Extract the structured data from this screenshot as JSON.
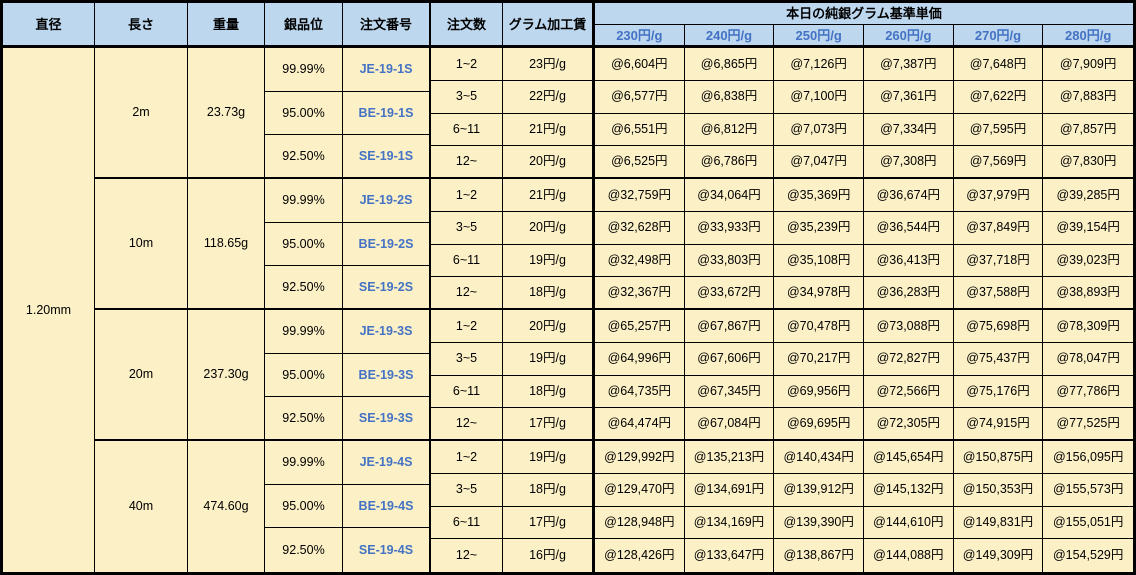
{
  "colors": {
    "header_bg": "#BDD7EE",
    "cell_bg": "#FCF0C6",
    "blue_text": "#4472C4",
    "border": "#000000"
  },
  "table": {
    "headers": {
      "diameter": "直径",
      "length": "長さ",
      "weight": "重量",
      "purity": "銀品位",
      "order_no": "注文番号",
      "qty": "注文数",
      "fee": "グラム加工賃",
      "price_group": "本日の純銀グラム基準単価",
      "price_cols": [
        "230円/g",
        "240円/g",
        "250円/g",
        "260円/g",
        "270円/g",
        "280円/g"
      ]
    },
    "diameter": "1.20mm",
    "groups": [
      {
        "length": "2m",
        "weight": "23.73g",
        "purities": [
          {
            "grade": "99.99%",
            "order_no": "JE-19-1S"
          },
          {
            "grade": "95.00%",
            "order_no": "BE-19-1S"
          },
          {
            "grade": "92.50%",
            "order_no": "SE-19-1S"
          }
        ],
        "rows": [
          {
            "qty": "1~2",
            "fee": "23円/g",
            "prices": [
              "@6,604円",
              "@6,865円",
              "@7,126円",
              "@7,387円",
              "@7,648円",
              "@7,909円"
            ]
          },
          {
            "qty": "3~5",
            "fee": "22円/g",
            "prices": [
              "@6,577円",
              "@6,838円",
              "@7,100円",
              "@7,361円",
              "@7,622円",
              "@7,883円"
            ]
          },
          {
            "qty": "6~11",
            "fee": "21円/g",
            "prices": [
              "@6,551円",
              "@6,812円",
              "@7,073円",
              "@7,334円",
              "@7,595円",
              "@7,857円"
            ]
          },
          {
            "qty": "12~",
            "fee": "20円/g",
            "prices": [
              "@6,525円",
              "@6,786円",
              "@7,047円",
              "@7,308円",
              "@7,569円",
              "@7,830円"
            ]
          }
        ]
      },
      {
        "length": "10m",
        "weight": "118.65g",
        "purities": [
          {
            "grade": "99.99%",
            "order_no": "JE-19-2S"
          },
          {
            "grade": "95.00%",
            "order_no": "BE-19-2S"
          },
          {
            "grade": "92.50%",
            "order_no": "SE-19-2S"
          }
        ],
        "rows": [
          {
            "qty": "1~2",
            "fee": "21円/g",
            "prices": [
              "@32,759円",
              "@34,064円",
              "@35,369円",
              "@36,674円",
              "@37,979円",
              "@39,285円"
            ]
          },
          {
            "qty": "3~5",
            "fee": "20円/g",
            "prices": [
              "@32,628円",
              "@33,933円",
              "@35,239円",
              "@36,544円",
              "@37,849円",
              "@39,154円"
            ]
          },
          {
            "qty": "6~11",
            "fee": "19円/g",
            "prices": [
              "@32,498円",
              "@33,803円",
              "@35,108円",
              "@36,413円",
              "@37,718円",
              "@39,023円"
            ]
          },
          {
            "qty": "12~",
            "fee": "18円/g",
            "prices": [
              "@32,367円",
              "@33,672円",
              "@34,978円",
              "@36,283円",
              "@37,588円",
              "@38,893円"
            ]
          }
        ]
      },
      {
        "length": "20m",
        "weight": "237.30g",
        "purities": [
          {
            "grade": "99.99%",
            "order_no": "JE-19-3S"
          },
          {
            "grade": "95.00%",
            "order_no": "BE-19-3S"
          },
          {
            "grade": "92.50%",
            "order_no": "SE-19-3S"
          }
        ],
        "rows": [
          {
            "qty": "1~2",
            "fee": "20円/g",
            "prices": [
              "@65,257円",
              "@67,867円",
              "@70,478円",
              "@73,088円",
              "@75,698円",
              "@78,309円"
            ]
          },
          {
            "qty": "3~5",
            "fee": "19円/g",
            "prices": [
              "@64,996円",
              "@67,606円",
              "@70,217円",
              "@72,827円",
              "@75,437円",
              "@78,047円"
            ]
          },
          {
            "qty": "6~11",
            "fee": "18円/g",
            "prices": [
              "@64,735円",
              "@67,345円",
              "@69,956円",
              "@72,566円",
              "@75,176円",
              "@77,786円"
            ]
          },
          {
            "qty": "12~",
            "fee": "17円/g",
            "prices": [
              "@64,474円",
              "@67,084円",
              "@69,695円",
              "@72,305円",
              "@74,915円",
              "@77,525円"
            ]
          }
        ]
      },
      {
        "length": "40m",
        "weight": "474.60g",
        "purities": [
          {
            "grade": "99.99%",
            "order_no": "JE-19-4S"
          },
          {
            "grade": "95.00%",
            "order_no": "BE-19-4S"
          },
          {
            "grade": "92.50%",
            "order_no": "SE-19-4S"
          }
        ],
        "rows": [
          {
            "qty": "1~2",
            "fee": "19円/g",
            "prices": [
              "@129,992円",
              "@135,213円",
              "@140,434円",
              "@145,654円",
              "@150,875円",
              "@156,095円"
            ]
          },
          {
            "qty": "3~5",
            "fee": "18円/g",
            "prices": [
              "@129,470円",
              "@134,691円",
              "@139,912円",
              "@145,132円",
              "@150,353円",
              "@155,573円"
            ]
          },
          {
            "qty": "6~11",
            "fee": "17円/g",
            "prices": [
              "@128,948円",
              "@134,169円",
              "@139,390円",
              "@144,610円",
              "@149,831円",
              "@155,051円"
            ]
          },
          {
            "qty": "12~",
            "fee": "16円/g",
            "prices": [
              "@128,426円",
              "@133,647円",
              "@138,867円",
              "@144,088円",
              "@149,309円",
              "@154,529円"
            ]
          }
        ]
      }
    ]
  }
}
